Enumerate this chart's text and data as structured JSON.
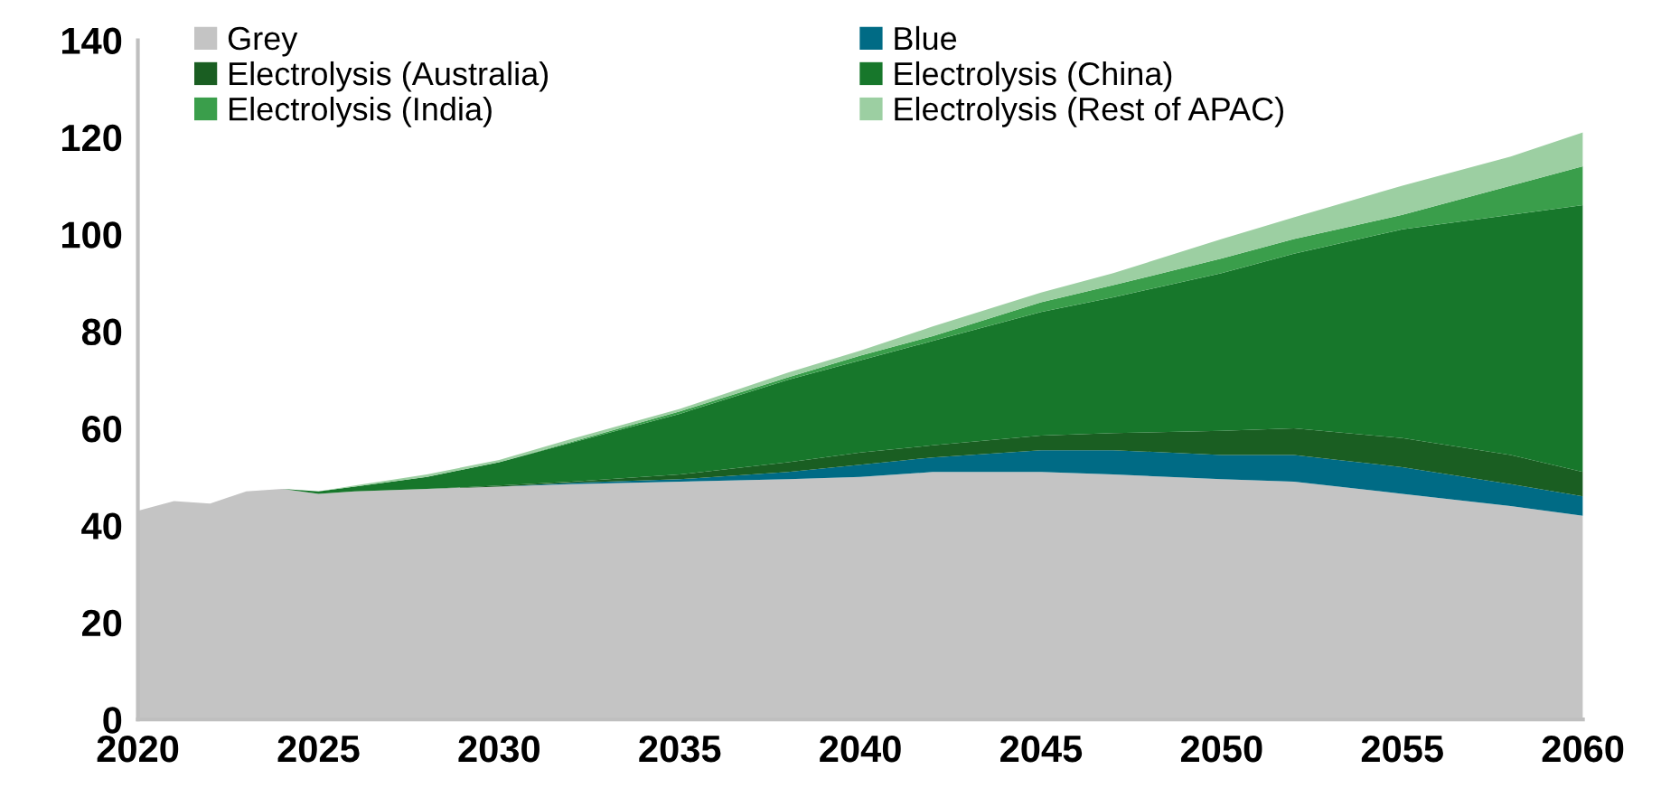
{
  "chart_data": {
    "type": "area",
    "stacked": true,
    "x": [
      2020,
      2021,
      2022,
      2023,
      2024,
      2025,
      2026,
      2028,
      2030,
      2032,
      2035,
      2038,
      2040,
      2042,
      2045,
      2047,
      2050,
      2052,
      2055,
      2058,
      2060
    ],
    "series": [
      {
        "name": "Grey",
        "color": "#c4c4c4",
        "values": [
          43,
          45,
          44.5,
          47,
          47.5,
          46.5,
          47,
          47.5,
          48,
          48.5,
          49,
          49.5,
          50,
          51,
          51,
          50.5,
          49.5,
          49,
          46.5,
          44,
          42
        ]
      },
      {
        "name": "Blue",
        "color": "#006b85",
        "values": [
          0,
          0,
          0,
          0,
          0,
          0,
          0,
          0,
          0,
          0.3,
          0.5,
          1.5,
          2.5,
          3,
          4.5,
          5,
          5,
          5.5,
          5.5,
          4.5,
          4
        ]
      },
      {
        "name": "Electrolysis (Australia)",
        "color": "#1a5e22",
        "values": [
          0,
          0,
          0,
          0,
          0,
          0,
          0,
          0,
          0.2,
          0.2,
          1,
          2,
          2.5,
          2.5,
          3,
          3.5,
          5,
          5.5,
          6,
          6,
          5
        ]
      },
      {
        "name": "Electrolysis (China)",
        "color": "#17772b",
        "values": [
          0,
          0,
          0,
          0,
          0,
          0.5,
          1,
          2.5,
          4.8,
          8,
          12.5,
          17,
          19,
          21.5,
          25.5,
          28,
          32.5,
          36,
          43,
          49.5,
          55
        ]
      },
      {
        "name": "Electrolysis (India)",
        "color": "#3a9e4b",
        "values": [
          0,
          0,
          0,
          0,
          0,
          0,
          0,
          0,
          0,
          0.2,
          0.5,
          0.5,
          1,
          1,
          2,
          2.5,
          3,
          3,
          3,
          6,
          8
        ]
      },
      {
        "name": "Electrolysis (Rest of APAC)",
        "color": "#9ccfa2",
        "values": [
          0,
          0,
          0,
          0,
          0,
          0,
          0.2,
          0.5,
          0.5,
          0.6,
          0.5,
          1,
          1,
          2,
          2,
          2.5,
          4,
          4.5,
          6,
          6,
          7
        ]
      }
    ],
    "xlim": [
      2020,
      2060
    ],
    "xticks": [
      2020,
      2025,
      2030,
      2035,
      2040,
      2045,
      2050,
      2055,
      2060
    ],
    "ylim": [
      0,
      140
    ],
    "yticks": [
      0,
      20,
      40,
      60,
      80,
      100,
      120,
      140
    ],
    "grid": false,
    "legend": "top"
  }
}
